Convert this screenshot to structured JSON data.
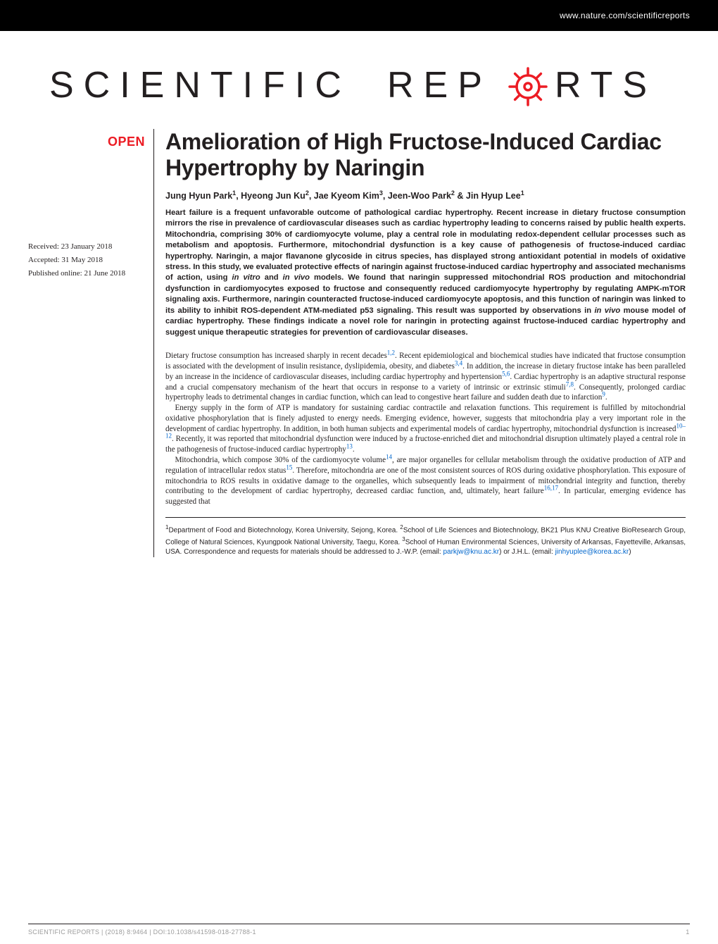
{
  "header": {
    "url": "www.nature.com/scientificreports"
  },
  "logo": {
    "text_left": "SCIENTIFIC",
    "text_right_a": "REP",
    "text_right_b": "RTS",
    "stroke_color": "#ec1c24",
    "font_family": "Arial, Helvetica, sans-serif",
    "letter_spacing": 14
  },
  "badge": {
    "label": "OPEN",
    "color": "#ec1c24"
  },
  "dates": {
    "received": "Received: 23 January 2018",
    "accepted": "Accepted: 31 May 2018",
    "published": "Published online: 21 June 2018"
  },
  "article": {
    "title": "Amelioration of High Fructose-Induced Cardiac Hypertrophy by Naringin",
    "authors_html": "Jung Hyun Park<sup>1</sup>, Hyeong Jun Ku<sup>2</sup>, Jae Kyeom Kim<sup>3</sup>, Jeen-Woo Park<sup>2</sup> & Jin Hyup Lee<sup>1</sup>",
    "abstract": "Heart failure is a frequent unfavorable outcome of pathological cardiac hypertrophy. Recent increase in dietary fructose consumption mirrors the rise in prevalence of cardiovascular diseases such as cardiac hypertrophy leading to concerns raised by public health experts. Mitochondria, comprising 30% of cardiomyocyte volume, play a central role in modulating redox-dependent cellular processes such as metabolism and apoptosis. Furthermore, mitochondrial dysfunction is a key cause of pathogenesis of fructose-induced cardiac hypertrophy. Naringin, a major flavanone glycoside in citrus species, has displayed strong antioxidant potential in models of oxidative stress. In this study, we evaluated protective effects of naringin against fructose-induced cardiac hypertrophy and associated mechanisms of action, using <span class=\"ital\">in vitro</span> and <span class=\"ital\">in vivo</span> models. We found that naringin suppressed mitochondrial ROS production and mitochondrial dysfunction in cardiomyocytes exposed to fructose and consequently reduced cardiomyocyte hypertrophy by regulating AMPK-mTOR signaling axis. Furthermore, naringin counteracted fructose-induced cardiomyocyte apoptosis, and this function of naringin was linked to its ability to inhibit ROS-dependent ATM-mediated p53 signaling. This result was supported by observations in <span class=\"ital\">in vivo</span> mouse model of cardiac hypertrophy. These findings indicate a novel role for naringin in protecting against fructose-induced cardiac hypertrophy and suggest unique therapeutic strategies for prevention of cardiovascular diseases.",
    "paragraphs": [
      "Dietary fructose consumption has increased sharply in recent decades<span class=\"ref\">1,2</span>. Recent epidemiological and biochemical studies have indicated that fructose consumption is associated with the development of insulin resistance, dyslipidemia, obesity, and diabetes<span class=\"ref\">3,4</span>. In addition, the increase in dietary fructose intake has been paralleled by an increase in the incidence of cardiovascular diseases, including cardiac hypertrophy and hypertension<span class=\"ref\">5,6</span>. Cardiac hypertrophy is an adaptive structural response and a crucial compensatory mechanism of the heart that occurs in response to a variety of intrinsic or extrinsic stimuli<span class=\"ref\">7,8</span>. Consequently, prolonged cardiac hypertrophy leads to detrimental changes in cardiac function, which can lead to congestive heart failure and sudden death due to infarction<span class=\"ref\">9</span>.",
      "Energy supply in the form of ATP is mandatory for sustaining cardiac contractile and relaxation functions. This requirement is fulfilled by mitochondrial oxidative phosphorylation that is finely adjusted to energy needs. Emerging evidence, however, suggests that mitochondria play a very important role in the development of cardiac hypertrophy. In addition, in both human subjects and experimental models of cardiac hypertrophy, mitochondrial dysfunction is increased<span class=\"ref\">10–12</span>. Recently, it was reported that mitochondrial dysfunction were induced by a fructose-enriched diet and mitochondrial disruption ultimately played a central role in the pathogenesis of fructose-induced cardiac hypertrophy<span class=\"ref\">13</span>.",
      "Mitochondria, which compose 30% of the cardiomyocyte volume<span class=\"ref\">14</span>, are major organelles for cellular metabolism through the oxidative production of ATP and regulation of intracellular redox status<span class=\"ref\">15</span>. Therefore, mitochondria are one of the most consistent sources of ROS during oxidative phosphorylation. This exposure of mitochondria to ROS results in oxidative damage to the organelles, which subsequently leads to impairment of mitochondrial integrity and function, thereby contributing to the development of cardiac hypertrophy, decreased cardiac function, and, ultimately, heart failure<span class=\"ref\">16,17</span>. In particular, emerging evidence has suggested that"
    ],
    "affiliations_html": "<sup>1</sup>Department of Food and Biotechnology, Korea University, Sejong, Korea. <sup>2</sup>School of Life Sciences and Biotechnology, BK21 Plus KNU Creative BioResearch Group, College of Natural Sciences, Kyungpook National University, Taegu, Korea. <sup>3</sup>School of Human Environmental Sciences, University of Arkansas, Fayetteville, Arkansas, USA. Correspondence and requests for materials should be addressed to J.-W.P. (email: <span class=\"email\">parkjw@knu.ac.kr</span>) or J.H.L. (email: <span class=\"email\">jinhyuplee@korea.ac.kr</span>)"
  },
  "footer": {
    "citation": "SCIENTIFIC REPORTS | (2018) 8:9464 | DOI:10.1038/s41598-018-27788-1",
    "page": "1"
  },
  "colors": {
    "black": "#000000",
    "red": "#ec1c24",
    "link": "#0066cc",
    "footer_grey": "#9b9b9b",
    "text": "#231f20",
    "bg": "#ffffff"
  }
}
